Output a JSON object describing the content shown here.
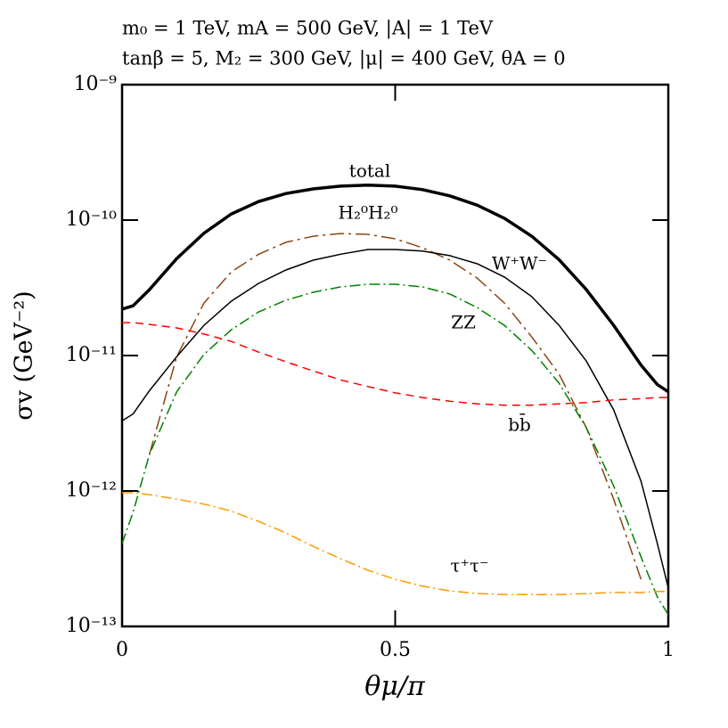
{
  "chart_data": {
    "type": "line",
    "title": "m₀ = 1 TeV,  mA = 500 GeV,  |A| = 1 TeV",
    "subtitle": "tanβ = 5,  M₂ = 300 GeV,  |μ| = 400 GeV,  θA = 0",
    "x_label": "θμ/π",
    "y_label": "σv  (GeV⁻²)",
    "log_y": true,
    "xlim": [
      0,
      1
    ],
    "xticks": [
      0,
      0.5,
      1
    ],
    "ylim": [
      1e-13,
      1e-09
    ],
    "yticks": [
      {
        "value": 1e-13,
        "label": "10⁻¹³"
      },
      {
        "value": 1e-12,
        "label": "10⁻¹²"
      },
      {
        "value": 1e-11,
        "label": "10⁻¹¹"
      },
      {
        "value": 1e-10,
        "label": "10⁻¹⁰"
      },
      {
        "value": 1e-09,
        "label": "10⁻⁹"
      }
    ],
    "x": [
      0,
      0.02,
      0.05,
      0.1,
      0.15,
      0.2,
      0.25,
      0.3,
      0.35,
      0.4,
      0.45,
      0.5,
      0.55,
      0.6,
      0.65,
      0.7,
      0.75,
      0.8,
      0.85,
      0.9,
      0.95,
      0.98,
      1
    ],
    "series": [
      {
        "name": "total",
        "color": "#000000",
        "line_style": "solid",
        "line_width": 3.5,
        "values": [
          2.2e-11,
          2.33e-11,
          3.07e-11,
          5.2e-11,
          8e-11,
          1.11e-10,
          1.37e-10,
          1.57e-10,
          1.7e-10,
          1.78e-10,
          1.81e-10,
          1.78e-10,
          1.68e-10,
          1.51e-10,
          1.29e-10,
          1.03e-10,
          7.6e-11,
          5.1e-11,
          3.07e-11,
          1.67e-11,
          8.5e-12,
          6.1e-12,
          5.4e-12
        ]
      },
      {
        "name": "H₂⁰H₂⁰",
        "color": "#8b4513",
        "line_style": "longdashdot",
        "line_width": 1.5,
        "values": [
          null,
          null,
          1.86e-12,
          9.8e-12,
          2.44e-11,
          4.15e-11,
          5.6e-11,
          6.86e-11,
          7.6e-11,
          7.96e-11,
          7.85e-11,
          7.28e-11,
          6.25e-11,
          5.06e-11,
          3.73e-11,
          2.44e-11,
          1.37e-11,
          7.3e-12,
          2.93e-12,
          8.7e-13,
          2.23e-13,
          null,
          null
        ]
      },
      {
        "name": "W⁺W⁻",
        "color": "#000000",
        "line_style": "solid",
        "line_width": 1.5,
        "values": [
          3.3e-12,
          3.7e-12,
          5.5e-12,
          9.8e-12,
          1.67e-11,
          2.52e-11,
          3.41e-11,
          4.28e-11,
          5.06e-11,
          5.6e-11,
          6.07e-11,
          6.07e-11,
          5.9e-11,
          5.46e-11,
          4.76e-11,
          3.8e-11,
          2.72e-11,
          1.67e-11,
          9.1e-12,
          3.97e-12,
          1.18e-12,
          4.1e-13,
          1.92e-13
        ]
      },
      {
        "name": "ZZ",
        "color": "#008000",
        "line_style": "dashdot",
        "line_width": 1.5,
        "values": [
          4.1e-13,
          6.95e-13,
          1.86e-12,
          5.4e-12,
          1.02e-11,
          1.55e-11,
          2.1e-11,
          2.56e-11,
          2.93e-11,
          3.21e-11,
          3.36e-11,
          3.36e-11,
          3.21e-11,
          2.85e-11,
          2.26e-11,
          1.67e-11,
          1.09e-11,
          6.25e-12,
          2.93e-12,
          1.09e-12,
          3.26e-13,
          1.65e-13,
          1.22e-13
        ]
      },
      {
        "name": "bb̄",
        "color": "#ff0000",
        "line_style": "dashed",
        "line_width": 1.5,
        "values": [
          1.75e-11,
          1.75e-11,
          1.7e-11,
          1.6e-11,
          1.44e-11,
          1.27e-11,
          1.06e-11,
          9e-12,
          7.7e-12,
          6.6e-12,
          5.9e-12,
          5.3e-12,
          4.9e-12,
          4.6e-12,
          4.4e-12,
          4.3e-12,
          4.3e-12,
          4.4e-12,
          4.5e-12,
          4.7e-12,
          4.8e-12,
          4.9e-12,
          4.9e-12
        ]
      },
      {
        "name": "τ⁺τ⁻",
        "color": "#ff9900",
        "line_style": "dashdot",
        "line_width": 1.5,
        "values": [
          9.7e-13,
          9.7e-13,
          9.4e-13,
          8.7e-13,
          8e-13,
          7.1e-13,
          5.97e-13,
          4.9e-13,
          3.9e-13,
          3.16e-13,
          2.6e-13,
          2.23e-13,
          1.98e-13,
          1.83e-13,
          1.75e-13,
          1.72e-13,
          1.72e-13,
          1.72e-13,
          1.75e-13,
          1.78e-13,
          1.78e-13,
          1.81e-13,
          1.81e-13
        ]
      }
    ]
  }
}
